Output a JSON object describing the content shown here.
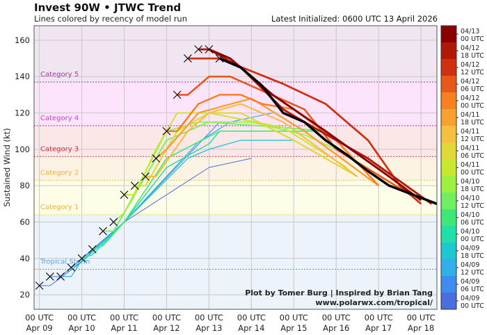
{
  "header": {
    "title": "Invest 90W • JTWC Trend",
    "subtitle": "Lines colored by recency of model run",
    "latest_init": "Latest Initialized: 0600 UTC 13 April 2026"
  },
  "credit": {
    "line1": "Plot by Tomer Burg | Inspired by Brian Tang",
    "line2": "www.polarwx.com/tropical/"
  },
  "chart_data": {
    "type": "line",
    "ylabel": "Sustained Wind (kt)",
    "xlabel": "",
    "x_unit": "hours after 00 UTC Apr 09",
    "ylim": [
      12,
      168
    ],
    "xlim": [
      -3,
      225
    ],
    "grid": true,
    "y_ticks": [
      20,
      40,
      60,
      80,
      100,
      120,
      140,
      160
    ],
    "x_ticks": [
      {
        "h": 0,
        "l1": "00 UTC",
        "l2": "Apr 09"
      },
      {
        "h": 24,
        "l1": "00 UTC",
        "l2": "Apr 10"
      },
      {
        "h": 48,
        "l1": "00 UTC",
        "l2": "Apr 11"
      },
      {
        "h": 72,
        "l1": "00 UTC",
        "l2": "Apr 12"
      },
      {
        "h": 96,
        "l1": "00 UTC",
        "l2": "Apr 13"
      },
      {
        "h": 120,
        "l1": "00 UTC",
        "l2": "Apr 14"
      },
      {
        "h": 144,
        "l1": "00 UTC",
        "l2": "Apr 15"
      },
      {
        "h": 168,
        "l1": "00 UTC",
        "l2": "Apr 16"
      },
      {
        "h": 192,
        "l1": "00 UTC",
        "l2": "Apr 17"
      },
      {
        "h": 216,
        "l1": "00 UTC",
        "l2": "Apr 18"
      }
    ],
    "categories": [
      {
        "name": "Tropical Storm",
        "threshold": 34,
        "line": "#5aa0e0",
        "fill": "#edf3fa",
        "label_color": "#5aa0e0"
      },
      {
        "name": "Category 1",
        "threshold": 64,
        "line": "#e8e040",
        "fill": "#fefde8",
        "label_color": "#f0b040"
      },
      {
        "name": "Category 2",
        "threshold": 83,
        "line": "#f0c050",
        "fill": "#fdf3e4",
        "label_color": "#f0b040"
      },
      {
        "name": "Category 3",
        "threshold": 96,
        "line": "#e04848",
        "fill": "#fbe7e7",
        "label_color": "#d03040"
      },
      {
        "name": "Category 4",
        "threshold": 113,
        "line": "#e040e0",
        "fill": "#fde4fd",
        "label_color": "#d040d0"
      },
      {
        "name": "Category 5",
        "threshold": 137,
        "line": "#b040b0",
        "fill": "#f2e5f2",
        "label_color": "#a040a0"
      }
    ],
    "observed": [
      [
        0,
        25
      ],
      [
        6,
        30
      ],
      [
        12,
        30
      ],
      [
        18,
        35
      ],
      [
        24,
        40
      ],
      [
        30,
        45
      ],
      [
        36,
        55
      ],
      [
        42,
        60
      ],
      [
        48,
        75
      ],
      [
        54,
        80
      ],
      [
        60,
        85
      ],
      [
        66,
        95
      ],
      [
        72,
        110
      ],
      [
        78,
        130
      ],
      [
        84,
        150
      ],
      [
        90,
        155
      ],
      [
        96,
        155
      ],
      [
        102,
        150
      ]
    ],
    "series": [
      {
        "name": "04/09 00 UTC",
        "color": "#4a6ee0",
        "points": [
          [
            0,
            25
          ],
          [
            6,
            25
          ],
          [
            24,
            38
          ],
          [
            48,
            60
          ],
          [
            96,
            90
          ],
          [
            120,
            95
          ]
        ]
      },
      {
        "name": "04/09 06 UTC",
        "color": "#3f8cf0",
        "points": [
          [
            6,
            30
          ],
          [
            12,
            30
          ],
          [
            24,
            40
          ],
          [
            48,
            60
          ],
          [
            102,
            115
          ]
        ]
      },
      {
        "name": "04/09 12 UTC",
        "color": "#2fb0ea",
        "points": [
          [
            12,
            30
          ],
          [
            18,
            30
          ],
          [
            24,
            39
          ],
          [
            48,
            60
          ],
          [
            90,
            104
          ],
          [
            108,
            115
          ],
          [
            132,
            120
          ]
        ]
      },
      {
        "name": "04/09 18 UTC",
        "color": "#1ec8d0",
        "points": [
          [
            18,
            35
          ],
          [
            24,
            38
          ],
          [
            48,
            60
          ],
          [
            84,
            95
          ],
          [
            96,
            100
          ],
          [
            114,
            105
          ],
          [
            144,
            105
          ]
        ]
      },
      {
        "name": "04/10 00 UTC",
        "color": "#1ee0a8",
        "points": [
          [
            24,
            40
          ],
          [
            30,
            42
          ],
          [
            48,
            60
          ],
          [
            72,
            90
          ],
          [
            96,
            103
          ],
          [
            102,
            110
          ],
          [
            144,
            110
          ]
        ]
      },
      {
        "name": "04/10 06 UTC",
        "color": "#3ee878",
        "points": [
          [
            30,
            45
          ],
          [
            36,
            47
          ],
          [
            48,
            60
          ],
          [
            72,
            95
          ],
          [
            102,
            110
          ],
          [
            162,
            110
          ]
        ]
      },
      {
        "name": "04/10 12 UTC",
        "color": "#6ef060",
        "points": [
          [
            36,
            55
          ],
          [
            42,
            55
          ],
          [
            72,
            105
          ],
          [
            96,
            115
          ],
          [
            138,
            112
          ],
          [
            162,
            110
          ]
        ]
      },
      {
        "name": "04/10 18 UTC",
        "color": "#a0f040",
        "points": [
          [
            42,
            60
          ],
          [
            48,
            65
          ],
          [
            72,
            110
          ],
          [
            90,
            115
          ],
          [
            120,
            115
          ],
          [
            150,
            108
          ],
          [
            168,
            100
          ]
        ]
      },
      {
        "name": "04/11 00 UTC",
        "color": "#c8e830",
        "points": [
          [
            48,
            75
          ],
          [
            54,
            75
          ],
          [
            66,
            100
          ],
          [
            78,
            120
          ],
          [
            96,
            120
          ],
          [
            138,
            112
          ],
          [
            174,
            90
          ]
        ]
      },
      {
        "name": "04/11 06 UTC",
        "color": "#e0d838",
        "points": [
          [
            54,
            80
          ],
          [
            60,
            80
          ],
          [
            78,
            110
          ],
          [
            96,
            120
          ],
          [
            114,
            120
          ],
          [
            144,
            105
          ],
          [
            180,
            85
          ]
        ]
      },
      {
        "name": "04/11 12 UTC",
        "color": "#f5c040",
        "points": [
          [
            60,
            85
          ],
          [
            66,
            85
          ],
          [
            84,
            110
          ],
          [
            96,
            120
          ],
          [
            114,
            125
          ],
          [
            138,
            115
          ],
          [
            180,
            85
          ]
        ]
      },
      {
        "name": "04/11 18 UTC",
        "color": "#f8a030",
        "points": [
          [
            66,
            95
          ],
          [
            72,
            100
          ],
          [
            90,
            120
          ],
          [
            120,
            128
          ],
          [
            150,
            110
          ],
          [
            192,
            80
          ]
        ]
      },
      {
        "name": "04/12 00 UTC",
        "color": "#f88020",
        "points": [
          [
            72,
            110
          ],
          [
            78,
            110
          ],
          [
            90,
            125
          ],
          [
            102,
            130
          ],
          [
            114,
            130
          ],
          [
            126,
            125
          ],
          [
            144,
            122
          ],
          [
            168,
            105
          ],
          [
            192,
            80
          ]
        ]
      },
      {
        "name": "04/12 06 UTC",
        "color": "#e85818",
        "points": [
          [
            78,
            130
          ],
          [
            84,
            130
          ],
          [
            96,
            140
          ],
          [
            108,
            140
          ],
          [
            150,
            122
          ],
          [
            168,
            100
          ],
          [
            210,
            75
          ]
        ]
      },
      {
        "name": "04/12 12 UTC",
        "color": "#d03010",
        "points": [
          [
            84,
            150
          ],
          [
            102,
            150
          ],
          [
            138,
            136
          ],
          [
            162,
            125
          ],
          [
            186,
            105
          ],
          [
            204,
            80
          ],
          [
            216,
            70
          ]
        ]
      },
      {
        "name": "04/12 18 UTC",
        "color": "#b01808",
        "points": [
          [
            90,
            155
          ],
          [
            96,
            155
          ],
          [
            114,
            145
          ],
          [
            138,
            122
          ],
          [
            150,
            115
          ],
          [
            186,
            95
          ],
          [
            222,
            70
          ]
        ]
      },
      {
        "name": "04/13 00 UTC",
        "color": "#8b0000",
        "points": [
          [
            96,
            155
          ],
          [
            108,
            150
          ],
          [
            132,
            130
          ],
          [
            162,
            110
          ],
          [
            198,
            85
          ],
          [
            216,
            72
          ]
        ]
      },
      {
        "name": "latest",
        "color": "#000000",
        "points": [
          [
            102,
            150
          ],
          [
            114,
            145
          ],
          [
            126,
            135
          ],
          [
            138,
            120
          ],
          [
            150,
            115
          ],
          [
            162,
            105
          ],
          [
            174,
            97
          ],
          [
            186,
            88
          ],
          [
            198,
            80
          ],
          [
            225,
            70
          ]
        ]
      }
    ],
    "colorbar": [
      {
        "l1": "04/13",
        "l2": "00 UTC",
        "color": "#8b0000"
      },
      {
        "l1": "04/12",
        "l2": "18 UTC",
        "color": "#b01808"
      },
      {
        "l1": "04/12",
        "l2": "12 UTC",
        "color": "#d03010"
      },
      {
        "l1": "04/12",
        "l2": "06 UTC",
        "color": "#e85818"
      },
      {
        "l1": "04/12",
        "l2": "00 UTC",
        "color": "#f88020"
      },
      {
        "l1": "04/11",
        "l2": "18 UTC",
        "color": "#f8a030"
      },
      {
        "l1": "04/11",
        "l2": "12 UTC",
        "color": "#f5c040"
      },
      {
        "l1": "04/11",
        "l2": "06 UTC",
        "color": "#e0d838"
      },
      {
        "l1": "04/11",
        "l2": "00 UTC",
        "color": "#c8e830"
      },
      {
        "l1": "04/10",
        "l2": "18 UTC",
        "color": "#a0f040"
      },
      {
        "l1": "04/10",
        "l2": "12 UTC",
        "color": "#6ef060"
      },
      {
        "l1": "04/10",
        "l2": "06 UTC",
        "color": "#3ee878"
      },
      {
        "l1": "04/10",
        "l2": "00 UTC",
        "color": "#1ee0a8"
      },
      {
        "l1": "04/09",
        "l2": "18 UTC",
        "color": "#1ec8d0"
      },
      {
        "l1": "04/09",
        "l2": "12 UTC",
        "color": "#2fb0ea"
      },
      {
        "l1": "04/09",
        "l2": "06 UTC",
        "color": "#3f8cf0"
      },
      {
        "l1": "04/09",
        "l2": "00 UTC",
        "color": "#4a6ee0"
      }
    ]
  }
}
